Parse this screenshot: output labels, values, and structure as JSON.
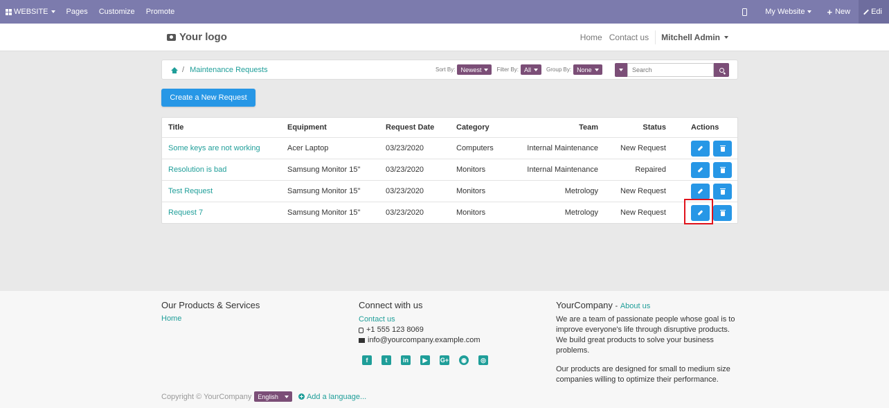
{
  "adminbar": {
    "website": "WEBSITE",
    "pages": "Pages",
    "customize": "Customize",
    "promote": "Promote",
    "my_website": "My Website",
    "new": "New",
    "edit": "Edi"
  },
  "header": {
    "logo": "Your logo",
    "nav_home": "Home",
    "nav_contact": "Contact us",
    "user": "Mitchell Admin"
  },
  "breadcrumb": {
    "separator": "/",
    "current": "Maintenance Requests"
  },
  "filters": {
    "sort_label": "Sort By:",
    "sort_value": "Newest",
    "filter_label": "Filter By:",
    "filter_value": "All",
    "group_label": "Group By:",
    "group_value": "None",
    "search_placeholder": "Search"
  },
  "create_button": "Create a New Request",
  "table": {
    "headers": {
      "title": "Title",
      "equipment": "Equipment",
      "date": "Request Date",
      "category": "Category",
      "team": "Team",
      "status": "Status",
      "actions": "Actions"
    },
    "rows": [
      {
        "title": "Some keys are not working",
        "equipment": "Acer Laptop",
        "date": "03/23/2020",
        "category": "Computers",
        "team": "Internal Maintenance",
        "status": "New Request"
      },
      {
        "title": "Resolution is bad",
        "equipment": "Samsung Monitor 15\"",
        "date": "03/23/2020",
        "category": "Monitors",
        "team": "Internal Maintenance",
        "status": "Repaired"
      },
      {
        "title": "Test Request",
        "equipment": "Samsung Monitor 15\"",
        "date": "03/23/2020",
        "category": "Monitors",
        "team": "Metrology",
        "status": "New Request"
      },
      {
        "title": "Request 7",
        "equipment": "Samsung Monitor 15\"",
        "date": "03/23/2020",
        "category": "Monitors",
        "team": "Metrology",
        "status": "New Request"
      }
    ]
  },
  "footer": {
    "products_title": "Our Products & Services",
    "products_home": "Home",
    "connect_title": "Connect with us",
    "contact_link": "Contact us",
    "phone": "+1 555 123 8069",
    "email": "info@yourcompany.example.com",
    "company_title": "YourCompany",
    "about_sep": "-",
    "about_link": "About us",
    "about_p1": "We are a team of passionate people whose goal is to improve everyone's life through disruptive products. We build great products to solve your business problems.",
    "about_p2": "Our products are designed for small to medium size companies willing to optimize their performance.",
    "copyright": "Copyright © YourCompany",
    "language": "English",
    "add_language": "Add a language..."
  },
  "colors": {
    "adminbar": "#7c7bad",
    "accent": "#1f9e99",
    "primary_button": "#2797e6",
    "pill": "#7b4e77",
    "highlight": "#e0121b"
  }
}
